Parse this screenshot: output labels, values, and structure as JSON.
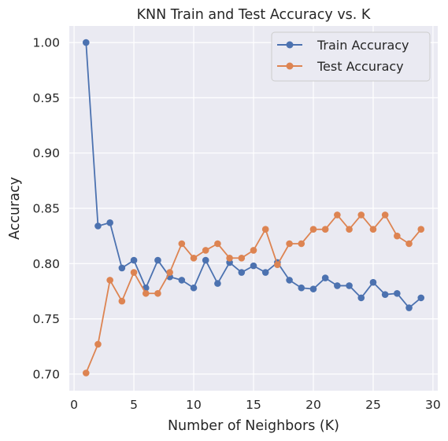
{
  "chart_data": {
    "type": "line",
    "title": "KNN Train and Test Accuracy vs. K",
    "xlabel": "Number of Neighbors (K)",
    "ylabel": "Accuracy",
    "xlim": [
      -0.4,
      30.4
    ],
    "ylim": [
      0.685,
      1.015
    ],
    "xticks": [
      0,
      5,
      10,
      15,
      20,
      25,
      30
    ],
    "xtick_labels": [
      "0",
      "5",
      "10",
      "15",
      "20",
      "25",
      "30"
    ],
    "yticks": [
      0.7,
      0.75,
      0.8,
      0.85,
      0.9,
      0.95,
      1.0
    ],
    "ytick_labels": [
      "0.70",
      "0.75",
      "0.80",
      "0.85",
      "0.90",
      "0.95",
      "1.00"
    ],
    "grid": true,
    "legend_position": "top-right",
    "x": [
      1,
      2,
      3,
      4,
      5,
      6,
      7,
      8,
      9,
      10,
      11,
      12,
      13,
      14,
      15,
      16,
      17,
      18,
      19,
      20,
      21,
      22,
      23,
      24,
      25,
      26,
      27,
      28,
      29
    ],
    "series": [
      {
        "name": "Train Accuracy",
        "color": "#4c72b0",
        "values": [
          1.0,
          0.834,
          0.837,
          0.796,
          0.803,
          0.778,
          0.803,
          0.788,
          0.785,
          0.778,
          0.803,
          0.782,
          0.801,
          0.792,
          0.798,
          0.792,
          0.801,
          0.785,
          0.778,
          0.777,
          0.787,
          0.78,
          0.78,
          0.769,
          0.783,
          0.772,
          0.773,
          0.76,
          0.769
        ]
      },
      {
        "name": "Test Accuracy",
        "color": "#dd8452",
        "values": [
          0.701,
          0.727,
          0.785,
          0.766,
          0.792,
          0.773,
          0.773,
          0.792,
          0.818,
          0.805,
          0.812,
          0.818,
          0.805,
          0.805,
          0.812,
          0.831,
          0.799,
          0.818,
          0.818,
          0.831,
          0.831,
          0.844,
          0.831,
          0.844,
          0.831,
          0.844,
          0.825,
          0.818,
          0.831
        ]
      }
    ]
  }
}
